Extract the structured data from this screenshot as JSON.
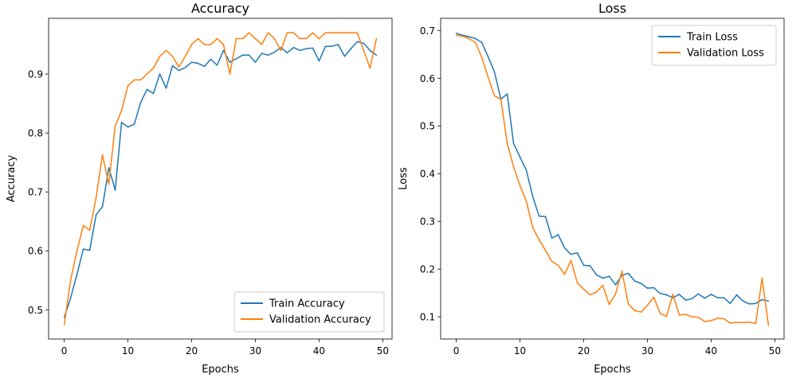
{
  "chart_data": [
    {
      "type": "line",
      "title": "Accuracy",
      "xlabel": "Epochs",
      "ylabel": "Accuracy",
      "xlim": [
        -2.45,
        51.45
      ],
      "ylim": [
        0.4505,
        0.9945
      ],
      "xticks": [
        0,
        10,
        20,
        30,
        40,
        50
      ],
      "yticks": [
        0.5,
        0.6,
        0.7,
        0.8,
        0.9
      ],
      "ytick_labels": [
        "0.5",
        "0.6",
        "0.7",
        "0.8",
        "0.9"
      ],
      "grid": false,
      "legend_position": "lower right",
      "series": [
        {
          "name": "Train Accuracy",
          "color": "#1f77b4",
          "x": [
            0,
            1,
            2,
            3,
            4,
            5,
            6,
            7,
            8,
            9,
            10,
            11,
            12,
            13,
            14,
            15,
            16,
            17,
            18,
            19,
            20,
            21,
            22,
            23,
            24,
            25,
            26,
            27,
            28,
            29,
            30,
            31,
            32,
            33,
            34,
            35,
            36,
            37,
            38,
            39,
            40,
            41,
            42,
            43,
            44,
            45,
            46,
            47,
            48,
            49
          ],
          "y": [
            0.487,
            0.52,
            0.56,
            0.603,
            0.601,
            0.661,
            0.675,
            0.741,
            0.703,
            0.818,
            0.81,
            0.815,
            0.852,
            0.874,
            0.867,
            0.9,
            0.876,
            0.914,
            0.906,
            0.911,
            0.92,
            0.918,
            0.913,
            0.925,
            0.915,
            0.94,
            0.92,
            0.926,
            0.932,
            0.932,
            0.92,
            0.935,
            0.932,
            0.937,
            0.945,
            0.936,
            0.945,
            0.94,
            0.943,
            0.944,
            0.922,
            0.947,
            0.947,
            0.95,
            0.93,
            0.943,
            0.955,
            0.952,
            0.94,
            0.932
          ]
        },
        {
          "name": "Validation Accuracy",
          "color": "#ff7f0e",
          "x": [
            0,
            1,
            2,
            3,
            4,
            5,
            6,
            7,
            8,
            9,
            10,
            11,
            12,
            13,
            14,
            15,
            16,
            17,
            18,
            19,
            20,
            21,
            22,
            23,
            24,
            25,
            26,
            27,
            28,
            29,
            30,
            31,
            32,
            33,
            34,
            35,
            36,
            37,
            38,
            39,
            40,
            41,
            42,
            43,
            44,
            45,
            46,
            47,
            48,
            49
          ],
          "y": [
            0.475,
            0.55,
            0.6,
            0.643,
            0.635,
            0.69,
            0.763,
            0.713,
            0.812,
            0.838,
            0.88,
            0.89,
            0.89,
            0.9,
            0.91,
            0.93,
            0.94,
            0.93,
            0.912,
            0.93,
            0.95,
            0.96,
            0.95,
            0.95,
            0.96,
            0.95,
            0.9,
            0.96,
            0.96,
            0.97,
            0.96,
            0.95,
            0.97,
            0.96,
            0.94,
            0.97,
            0.97,
            0.96,
            0.96,
            0.97,
            0.96,
            0.97,
            0.97,
            0.97,
            0.97,
            0.97,
            0.97,
            0.94,
            0.91,
            0.96
          ]
        }
      ]
    },
    {
      "type": "line",
      "title": "Loss",
      "xlabel": "Epochs",
      "ylabel": "Loss",
      "xlim": [
        -2.45,
        51.45
      ],
      "ylim": [
        0.0535,
        0.7255
      ],
      "xticks": [
        0,
        10,
        20,
        30,
        40,
        50
      ],
      "yticks": [
        0.1,
        0.2,
        0.3,
        0.4,
        0.5,
        0.6,
        0.7
      ],
      "ytick_labels": [
        "0.1",
        "0.2",
        "0.3",
        "0.4",
        "0.5",
        "0.6",
        "0.7"
      ],
      "grid": false,
      "legend_position": "upper right",
      "series": [
        {
          "name": "Train Loss",
          "color": "#1f77b4",
          "x": [
            0,
            1,
            2,
            3,
            4,
            5,
            6,
            7,
            8,
            9,
            10,
            11,
            12,
            13,
            14,
            15,
            16,
            17,
            18,
            19,
            20,
            21,
            22,
            23,
            24,
            25,
            26,
            27,
            28,
            29,
            30,
            31,
            32,
            33,
            34,
            35,
            36,
            37,
            38,
            39,
            40,
            41,
            42,
            43,
            44,
            45,
            46,
            47,
            48,
            49
          ],
          "y": [
            0.694,
            0.69,
            0.687,
            0.683,
            0.675,
            0.645,
            0.613,
            0.556,
            0.567,
            0.463,
            0.435,
            0.407,
            0.352,
            0.311,
            0.31,
            0.265,
            0.272,
            0.244,
            0.231,
            0.234,
            0.208,
            0.207,
            0.188,
            0.181,
            0.185,
            0.167,
            0.187,
            0.191,
            0.175,
            0.17,
            0.16,
            0.161,
            0.149,
            0.146,
            0.14,
            0.147,
            0.135,
            0.138,
            0.148,
            0.139,
            0.147,
            0.14,
            0.14,
            0.128,
            0.146,
            0.133,
            0.127,
            0.128,
            0.136,
            0.133
          ]
        },
        {
          "name": "Validation Loss",
          "color": "#ff7f0e",
          "x": [
            0,
            1,
            2,
            3,
            4,
            5,
            6,
            7,
            8,
            9,
            10,
            11,
            12,
            13,
            14,
            15,
            16,
            17,
            18,
            19,
            20,
            21,
            22,
            23,
            24,
            25,
            26,
            27,
            28,
            29,
            30,
            31,
            32,
            33,
            34,
            35,
            36,
            37,
            38,
            39,
            40,
            41,
            42,
            43,
            44,
            45,
            46,
            47,
            48,
            49
          ],
          "y": [
            0.69,
            0.688,
            0.683,
            0.675,
            0.644,
            0.602,
            0.563,
            0.556,
            0.463,
            0.414,
            0.375,
            0.342,
            0.287,
            0.262,
            0.239,
            0.216,
            0.208,
            0.189,
            0.218,
            0.171,
            0.158,
            0.146,
            0.152,
            0.166,
            0.126,
            0.148,
            0.196,
            0.127,
            0.113,
            0.11,
            0.124,
            0.141,
            0.107,
            0.101,
            0.147,
            0.104,
            0.105,
            0.1,
            0.099,
            0.09,
            0.092,
            0.097,
            0.096,
            0.087,
            0.088,
            0.088,
            0.089,
            0.086,
            0.181,
            0.082
          ]
        }
      ]
    }
  ]
}
